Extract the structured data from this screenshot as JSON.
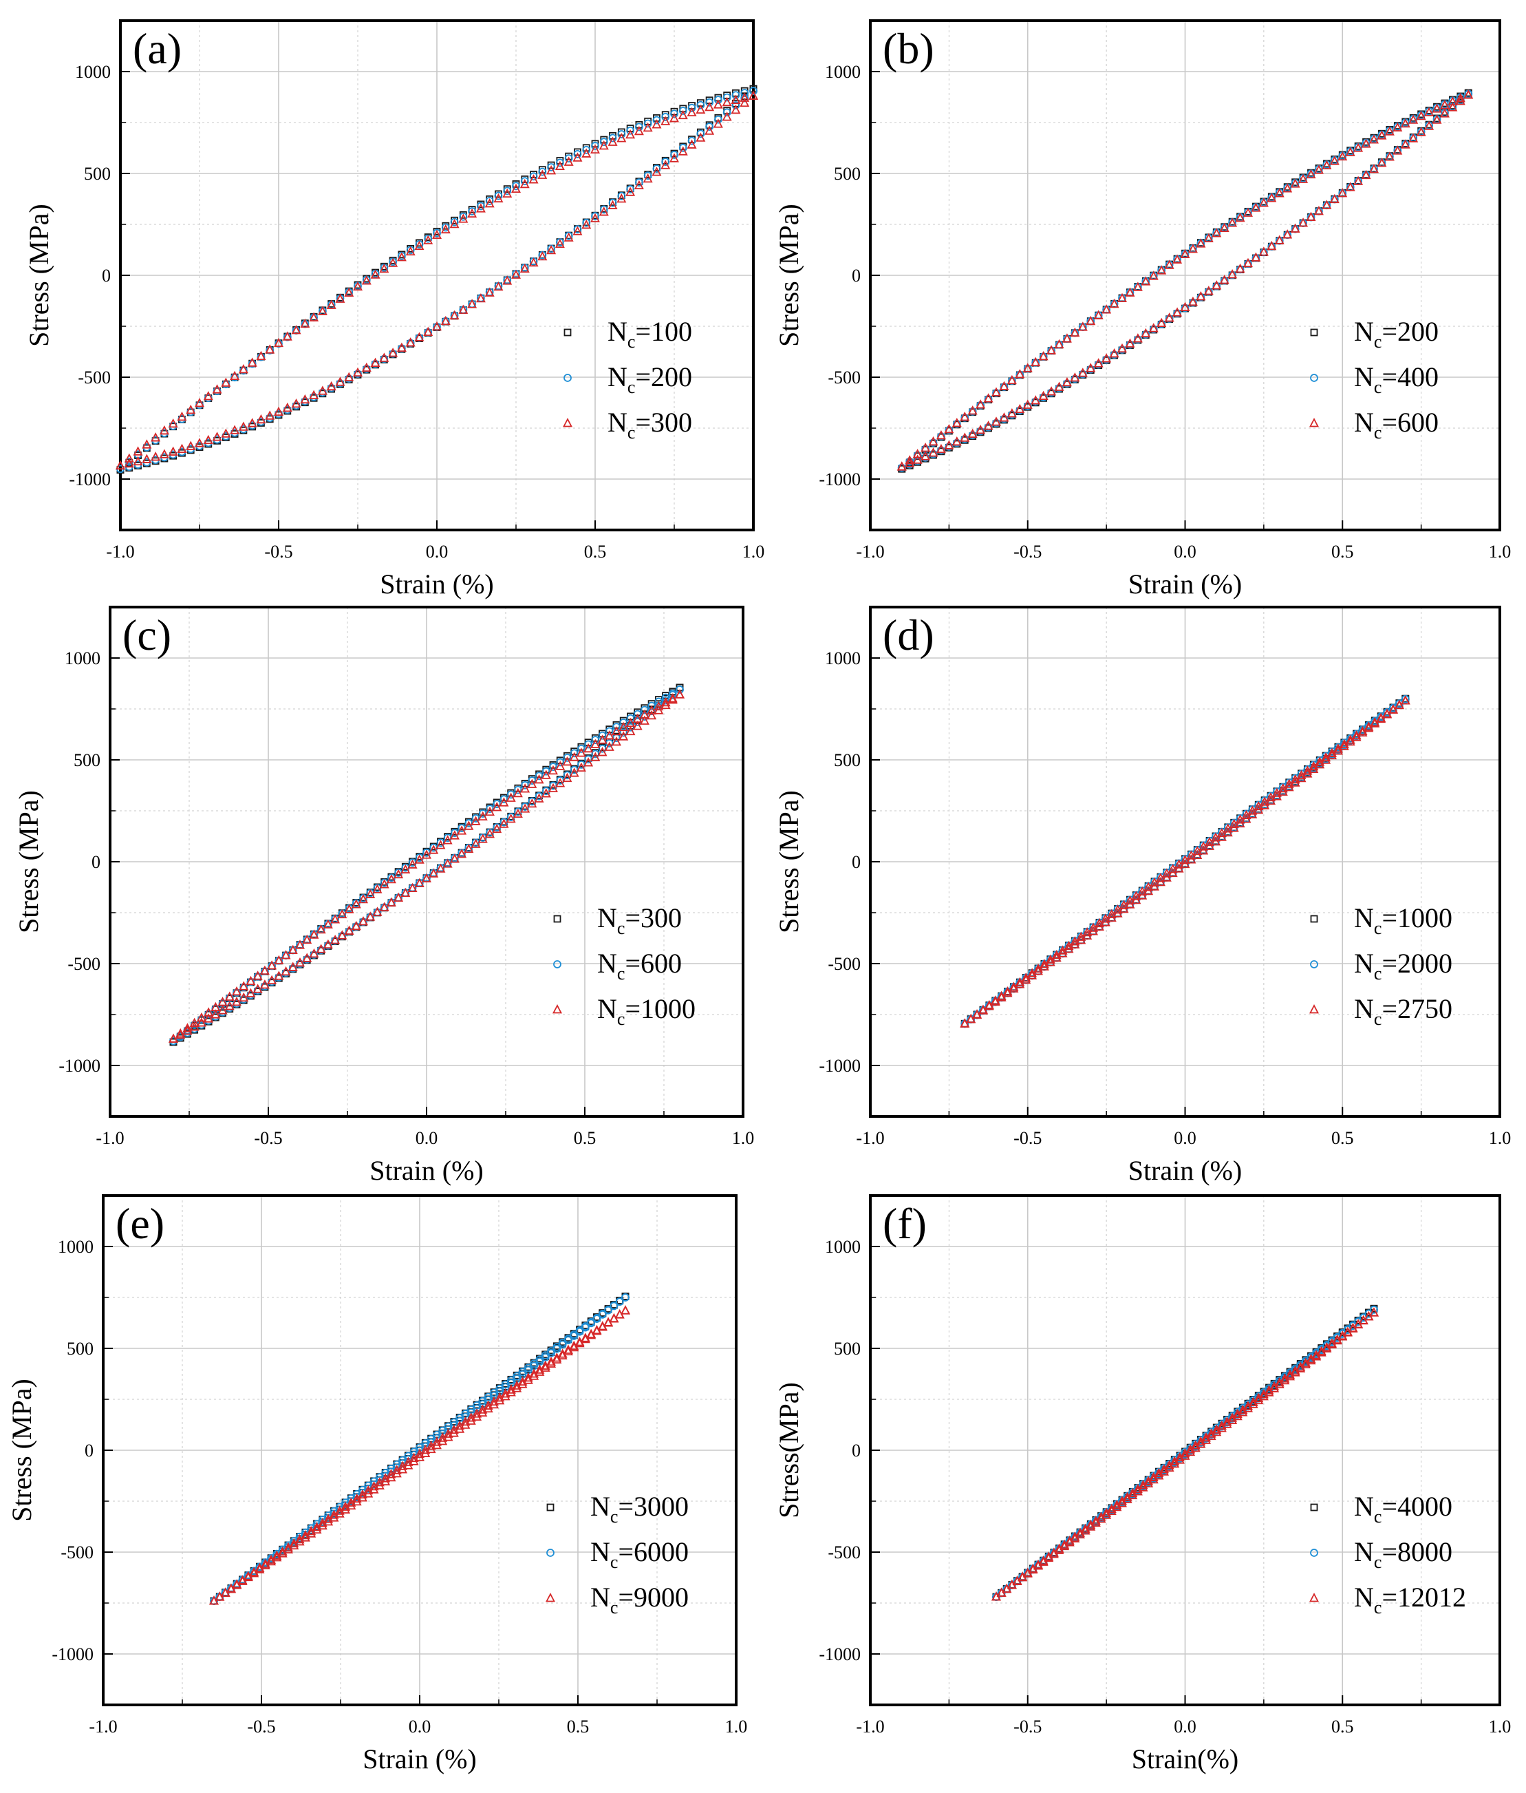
{
  "figure": {
    "colors": {
      "series_1": "#1a1a1a",
      "series_2": "#1f8fd6",
      "series_3": "#d62728",
      "grid": "#c8c8c8",
      "frame": "#000000"
    },
    "legend_position": "bottom-right",
    "x_ticks": [
      "-1.0",
      "-0.5",
      "0.0",
      "0.5",
      "1.0"
    ],
    "y_ticks": [
      "-1000",
      "-500",
      "0",
      "500",
      "1000"
    ]
  },
  "chart_data": [
    {
      "type": "scatter",
      "panel_label": "(a)",
      "xlabel": "Strain (%)",
      "ylabel": "Stress (MPa)",
      "xlim": [
        -1.0,
        1.0
      ],
      "ylim": [
        -1250,
        1250
      ],
      "strain_amplitude": 1.0,
      "series": [
        {
          "name": "N",
          "subscript": "c",
          "value_text": "=100",
          "marker": "square",
          "color": "#1a1a1a",
          "sigma_max": 915,
          "sigma_min": -955,
          "half_width": 235
        },
        {
          "name": "N",
          "subscript": "c",
          "value_text": "=200",
          "marker": "circle",
          "color": "#1f8fd6",
          "sigma_max": 905,
          "sigma_min": -950,
          "half_width": 230
        },
        {
          "name": "N",
          "subscript": "c",
          "value_text": "=300",
          "marker": "triangle",
          "color": "#d62728",
          "sigma_max": 880,
          "sigma_min": -935,
          "half_width": 225
        }
      ]
    },
    {
      "type": "scatter",
      "panel_label": "(b)",
      "xlabel": "Strain (%)",
      "ylabel": "Stress (MPa)",
      "xlim": [
        -1.0,
        1.0
      ],
      "ylim": [
        -1250,
        1250
      ],
      "strain_amplitude": 0.9,
      "series": [
        {
          "name": "N",
          "subscript": "c",
          "value_text": "=200",
          "marker": "square",
          "color": "#1a1a1a",
          "sigma_max": 895,
          "sigma_min": -950,
          "half_width": 135
        },
        {
          "name": "N",
          "subscript": "c",
          "value_text": "=400",
          "marker": "circle",
          "color": "#1f8fd6",
          "sigma_max": 890,
          "sigma_min": -945,
          "half_width": 133
        },
        {
          "name": "N",
          "subscript": "c",
          "value_text": "=600",
          "marker": "triangle",
          "color": "#d62728",
          "sigma_max": 885,
          "sigma_min": -940,
          "half_width": 130
        }
      ]
    },
    {
      "type": "scatter",
      "panel_label": "(c)",
      "xlabel": "Strain (%)",
      "ylabel": "Stress (MPa)",
      "xlim": [
        -1.0,
        1.0
      ],
      "ylim": [
        -1250,
        1250
      ],
      "strain_amplitude": 0.8,
      "series": [
        {
          "name": "N",
          "subscript": "c",
          "value_text": "=300",
          "marker": "square",
          "color": "#1a1a1a",
          "sigma_max": 855,
          "sigma_min": -885,
          "half_width": 65
        },
        {
          "name": "N",
          "subscript": "c",
          "value_text": "=600",
          "marker": "circle",
          "color": "#1f8fd6",
          "sigma_max": 845,
          "sigma_min": -880,
          "half_width": 62
        },
        {
          "name": "N",
          "subscript": "c",
          "value_text": "=1000",
          "marker": "triangle",
          "color": "#d62728",
          "sigma_max": 820,
          "sigma_min": -870,
          "half_width": 58
        }
      ]
    },
    {
      "type": "scatter",
      "panel_label": "(d)",
      "xlabel": "Strain (%)",
      "ylabel": "Stress (MPa)",
      "xlim": [
        -1.0,
        1.0
      ],
      "ylim": [
        -1250,
        1250
      ],
      "strain_amplitude": 0.7,
      "series": [
        {
          "name": "N",
          "subscript": "c",
          "value_text": "=1000",
          "marker": "square",
          "color": "#1a1a1a",
          "sigma_max": 800,
          "sigma_min": -795,
          "half_width": 12
        },
        {
          "name": "N",
          "subscript": "c",
          "value_text": "=2000",
          "marker": "circle",
          "color": "#1f8fd6",
          "sigma_max": 798,
          "sigma_min": -795,
          "half_width": 12
        },
        {
          "name": "N",
          "subscript": "c",
          "value_text": "=2750",
          "marker": "triangle",
          "color": "#d62728",
          "sigma_max": 790,
          "sigma_min": -795,
          "half_width": 10
        }
      ]
    },
    {
      "type": "scatter",
      "panel_label": "(e)",
      "xlabel": "Strain (%)",
      "ylabel": "Stress (MPa)",
      "xlim": [
        -1.0,
        1.0
      ],
      "ylim": [
        -1250,
        1250
      ],
      "strain_amplitude": 0.65,
      "series": [
        {
          "name": "N",
          "subscript": "c",
          "value_text": "=3000",
          "marker": "square",
          "color": "#1a1a1a",
          "sigma_max": 755,
          "sigma_min": -740,
          "half_width": 8
        },
        {
          "name": "N",
          "subscript": "c",
          "value_text": "=6000",
          "marker": "circle",
          "color": "#1f8fd6",
          "sigma_max": 750,
          "sigma_min": -740,
          "half_width": 8
        },
        {
          "name": "N",
          "subscript": "c",
          "value_text": "=9000",
          "marker": "triangle",
          "color": "#d62728",
          "sigma_max": 685,
          "sigma_min": -740,
          "half_width": 8
        }
      ]
    },
    {
      "type": "scatter",
      "panel_label": "(f)",
      "xlabel": "Strain(%)",
      "ylabel": "Stress(MPa)",
      "xlim": [
        -1.0,
        1.0
      ],
      "ylim": [
        -1250,
        1250
      ],
      "strain_amplitude": 0.6,
      "series": [
        {
          "name": "N",
          "subscript": "c",
          "value_text": "=4000",
          "marker": "square",
          "color": "#1a1a1a",
          "sigma_max": 695,
          "sigma_min": -720,
          "half_width": 6
        },
        {
          "name": "N",
          "subscript": "c",
          "value_text": "=8000",
          "marker": "circle",
          "color": "#1f8fd6",
          "sigma_max": 690,
          "sigma_min": -720,
          "half_width": 6
        },
        {
          "name": "N",
          "subscript": "c",
          "value_text": "=12012",
          "marker": "triangle",
          "color": "#d62728",
          "sigma_max": 675,
          "sigma_min": -720,
          "half_width": 6
        }
      ]
    }
  ]
}
